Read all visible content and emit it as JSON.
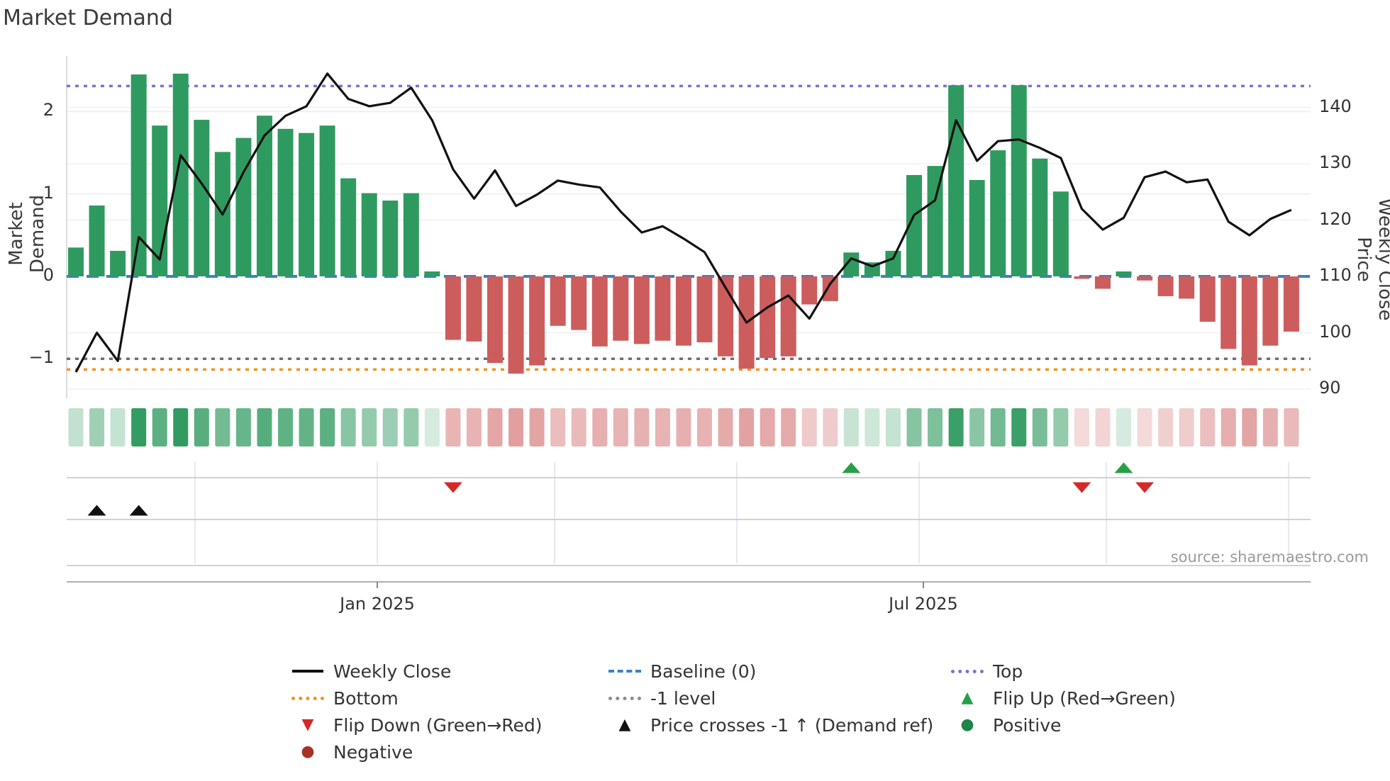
{
  "title": "Market Demand",
  "source_text": "source: sharemaestro.com",
  "axes": {
    "left_label": "Market Demand",
    "right_label": "Weekly Close Price",
    "left_ticks": [
      {
        "label": "2",
        "value": 2
      },
      {
        "label": "1",
        "value": 1
      },
      {
        "label": "0",
        "value": 0
      },
      {
        "label": "−1",
        "value": -1
      }
    ],
    "right_ticks": [
      {
        "label": "140",
        "value": 140
      },
      {
        "label": "130",
        "value": 130
      },
      {
        "label": "120",
        "value": 120
      },
      {
        "label": "110",
        "value": 110
      },
      {
        "label": "100",
        "value": 100
      },
      {
        "label": "90",
        "value": 90
      }
    ],
    "x_ticks": [
      {
        "label": "Jan 2025",
        "x": 532
      },
      {
        "label": "Jul 2025",
        "x": 1302
      }
    ]
  },
  "chart_data": {
    "type": "mixed",
    "weeks": 59,
    "series": [
      {
        "name": "Market Demand",
        "type": "bar",
        "axis": "left",
        "values": [
          0.35,
          0.86,
          0.31,
          2.45,
          1.83,
          2.46,
          1.9,
          1.51,
          1.68,
          1.95,
          1.79,
          1.74,
          1.83,
          1.19,
          1.01,
          0.92,
          1.01,
          0.06,
          -0.77,
          -0.79,
          -1.05,
          -1.18,
          -1.08,
          -0.6,
          -0.65,
          -0.85,
          -0.78,
          -0.82,
          -0.78,
          -0.84,
          -0.8,
          -0.97,
          -1.12,
          -0.99,
          -0.97,
          -0.34,
          -0.3,
          0.29,
          0.17,
          0.31,
          1.23,
          1.34,
          2.32,
          1.17,
          1.53,
          2.32,
          1.43,
          1.03,
          -0.03,
          -0.15,
          0.06,
          -0.05,
          -0.24,
          -0.27,
          -0.55,
          -0.88,
          -1.08,
          -0.84,
          -0.67
        ]
      },
      {
        "name": "Weekly Close",
        "type": "line",
        "axis": "right",
        "values": [
          93,
          100,
          95,
          117,
          113,
          131.5,
          126.5,
          121,
          128.5,
          135,
          138.5,
          140.2,
          146,
          141.5,
          140.2,
          140.8,
          143.5,
          137.7,
          129,
          123.8,
          128.8,
          122.5,
          124.5,
          127,
          126.3,
          125.8,
          121.5,
          117.8,
          118.9,
          116.7,
          114.3,
          108,
          101.8,
          104.5,
          106.6,
          102.5,
          108.7,
          113.2,
          111.8,
          113.2,
          120.9,
          123.5,
          137.7,
          130.5,
          134,
          134.3,
          132.8,
          131,
          122,
          118.3,
          120.4,
          127.6,
          128.6,
          126.7,
          127.2,
          119.7,
          117.3,
          120.2,
          121.8
        ]
      }
    ],
    "reference_lines": [
      {
        "name": "Top",
        "value": 2.31,
        "axis": "left",
        "style": "dotted",
        "color": "#7d6fd8"
      },
      {
        "name": "Baseline (0)",
        "value": 0,
        "axis": "left",
        "style": "dashed",
        "color": "#3b82c4"
      },
      {
        "name": "-1 level",
        "value": -1,
        "axis": "left",
        "style": "dotted",
        "color": "#6e6e6e"
      },
      {
        "name": "Bottom",
        "value": -1.13,
        "axis": "left",
        "style": "dotted",
        "color": "#f5921b"
      }
    ],
    "left_axis_range": [
      -1.55,
      2.67
    ],
    "right_axis_range": [
      88,
      149
    ],
    "markers": {
      "flip_up": {
        "label": "Flip Up (Red→Green)",
        "weeks": [
          38,
          51
        ],
        "color": "#27a045"
      },
      "flip_down": {
        "label": "Flip Down (Green→Red)",
        "weeks": [
          19,
          49,
          52
        ],
        "color": "#d62728"
      },
      "price_cross": {
        "label": "Price crosses -1 ↑ (Demand ref)",
        "weeks": [
          2,
          4
        ],
        "color": "#111111"
      }
    },
    "heatmap_strip": "one cell per week, green shade scales with positive demand, red shade with negative demand"
  },
  "colors": {
    "positive_bar": "#2f9a5f",
    "negative_bar": "#cd5c5c",
    "price_line": "#111111",
    "baseline": "#3b82c4",
    "top_line": "#7d6fd8",
    "bottom_line": "#f5921b",
    "minus_one_line": "#6e6e6e",
    "grid": "#ececf3",
    "negative_dot": "#a93226",
    "positive_dot": "#1e8449"
  },
  "legend": {
    "cols": [
      {
        "x": 408,
        "items": [
          {
            "swatch": "line-solid",
            "color": "#111111",
            "label": "Weekly Close"
          },
          {
            "swatch": "line-dotted",
            "color": "#f5921b",
            "label": "Bottom"
          },
          {
            "swatch": "tri-down",
            "color": "#d62728",
            "label": "Flip Down (Green→Red)"
          },
          {
            "swatch": "circle",
            "color": "#a93226",
            "label": "Negative"
          }
        ]
      },
      {
        "x": 855,
        "items": [
          {
            "swatch": "line-dashed",
            "color": "#3b82c4",
            "label": "Baseline (0)"
          },
          {
            "swatch": "line-dotted",
            "color": "#8a8a8a",
            "label": "-1 level"
          },
          {
            "swatch": "tri-up",
            "color": "#111111",
            "label": "Price crosses -1 ↑ (Demand ref)"
          }
        ]
      },
      {
        "x": 1338,
        "items": [
          {
            "swatch": "line-dotted",
            "color": "#7d6fd8",
            "label": "Top"
          },
          {
            "swatch": "tri-up",
            "color": "#27a045",
            "label": "Flip Up (Red→Green)"
          },
          {
            "swatch": "circle",
            "color": "#1e8449",
            "label": "Positive"
          }
        ]
      }
    ]
  }
}
